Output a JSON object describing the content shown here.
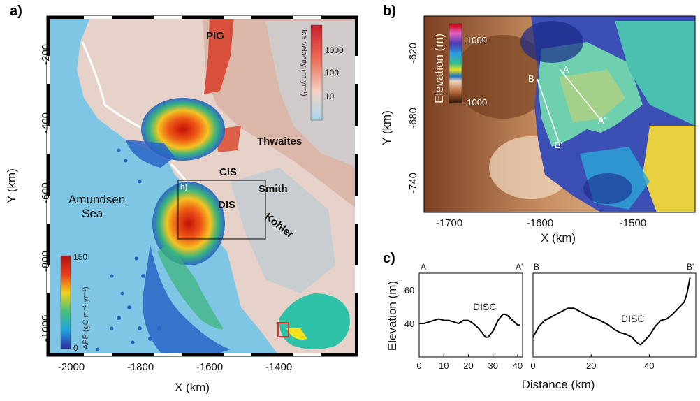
{
  "panels": {
    "a": {
      "letter": "a)",
      "x_label": "X (km)",
      "y_label": "Y (km)",
      "x_ticks": [
        "-2000",
        "-1800",
        "-1600",
        "-1400"
      ],
      "y_ticks": [
        "-200",
        "-400",
        "-600",
        "-800",
        "-1000"
      ],
      "places": {
        "pig": "PIG",
        "thwaites": "Thwaites",
        "cis": "CIS",
        "smith": "Smith",
        "dis": "DIS",
        "kohler": "Kohler",
        "sea_line1": "Amundsen",
        "sea_line2": "Sea",
        "inset_b": "b)"
      },
      "velocity_colorbar": {
        "title": "Ice velocity (m yr⁻¹)",
        "ticks": [
          "1000",
          "100",
          "10"
        ]
      },
      "app_colorbar": {
        "title": "APP (gC m⁻² yr⁻¹)",
        "max": "150",
        "min": "0"
      }
    },
    "b": {
      "letter": "b)",
      "x_label": "X (km)",
      "y_label": "Y (km)",
      "x_ticks": [
        "-1700",
        "-1600",
        "-1500"
      ],
      "y_ticks": [
        "-620",
        "-680",
        "-740"
      ],
      "colorbar": {
        "title": "Elevation (m)",
        "max": "1000",
        "min": "-1000"
      },
      "profile_labels": {
        "a": "A",
        "a_prime": "A'",
        "b": "B",
        "b_prime": "B'"
      }
    },
    "c": {
      "letter": "c)",
      "y_label": "Elevation (m)",
      "x_label": "Distance (km)",
      "left": {
        "start": "A",
        "end": "A'",
        "annotation": "DISC",
        "x_ticks": [
          "0",
          "10",
          "20",
          "30",
          "40"
        ],
        "y_ticks": [
          "60",
          "40"
        ]
      },
      "right": {
        "start": "B",
        "end": "B'",
        "annotation": "DISC",
        "x_ticks": [
          "0",
          "20",
          "40"
        ]
      }
    }
  },
  "colors": {
    "ocean": "#7fc6e4",
    "ice_shelf": "#e9d3c6",
    "velocity_high": "#d23a2a",
    "bloom_hot": "#d01a10",
    "bloom_warm": "#f2b21a",
    "bloom_mid": "#39b27a",
    "bloom_cool": "#2a62c4",
    "antarctica": "#2ec2a8",
    "box": "#222222",
    "inset_box": "#e03020"
  },
  "chart_data": [
    {
      "type": "line",
      "title": "",
      "xlabel": "Distance (km)",
      "ylabel": "Elevation (m)",
      "xlim": [
        0,
        42
      ],
      "ylim": [
        20,
        75
      ],
      "series": [
        {
          "x": [
            0,
            2,
            4,
            6,
            8,
            10,
            12,
            14,
            16,
            18,
            20,
            22,
            24,
            26,
            27,
            28,
            30,
            32,
            34,
            35,
            36,
            38,
            40,
            41
          ],
          "y": [
            42,
            42,
            43,
            44,
            45,
            44,
            44,
            43,
            42,
            44,
            44,
            42,
            39,
            35,
            33,
            33,
            37,
            44,
            48,
            48,
            47,
            44,
            41,
            41
          ]
        }
      ]
    },
    {
      "type": "line",
      "title": "",
      "xlabel": "Distance (km)",
      "ylabel": "Elevation (m)",
      "xlim": [
        0,
        56
      ],
      "ylim": [
        20,
        75
      ],
      "series": [
        {
          "x": [
            0,
            2,
            4,
            6,
            8,
            10,
            12,
            14,
            16,
            18,
            20,
            22,
            24,
            26,
            28,
            30,
            32,
            34,
            36,
            37,
            38,
            40,
            42,
            44,
            46,
            48,
            50,
            52,
            53,
            54
          ],
          "y": [
            33,
            40,
            44,
            46,
            48,
            50,
            52,
            52,
            50,
            48,
            46,
            45,
            43,
            41,
            38,
            36,
            35,
            33,
            29,
            28,
            30,
            34,
            40,
            44,
            45,
            48,
            52,
            56,
            62,
            72
          ]
        }
      ]
    }
  ]
}
